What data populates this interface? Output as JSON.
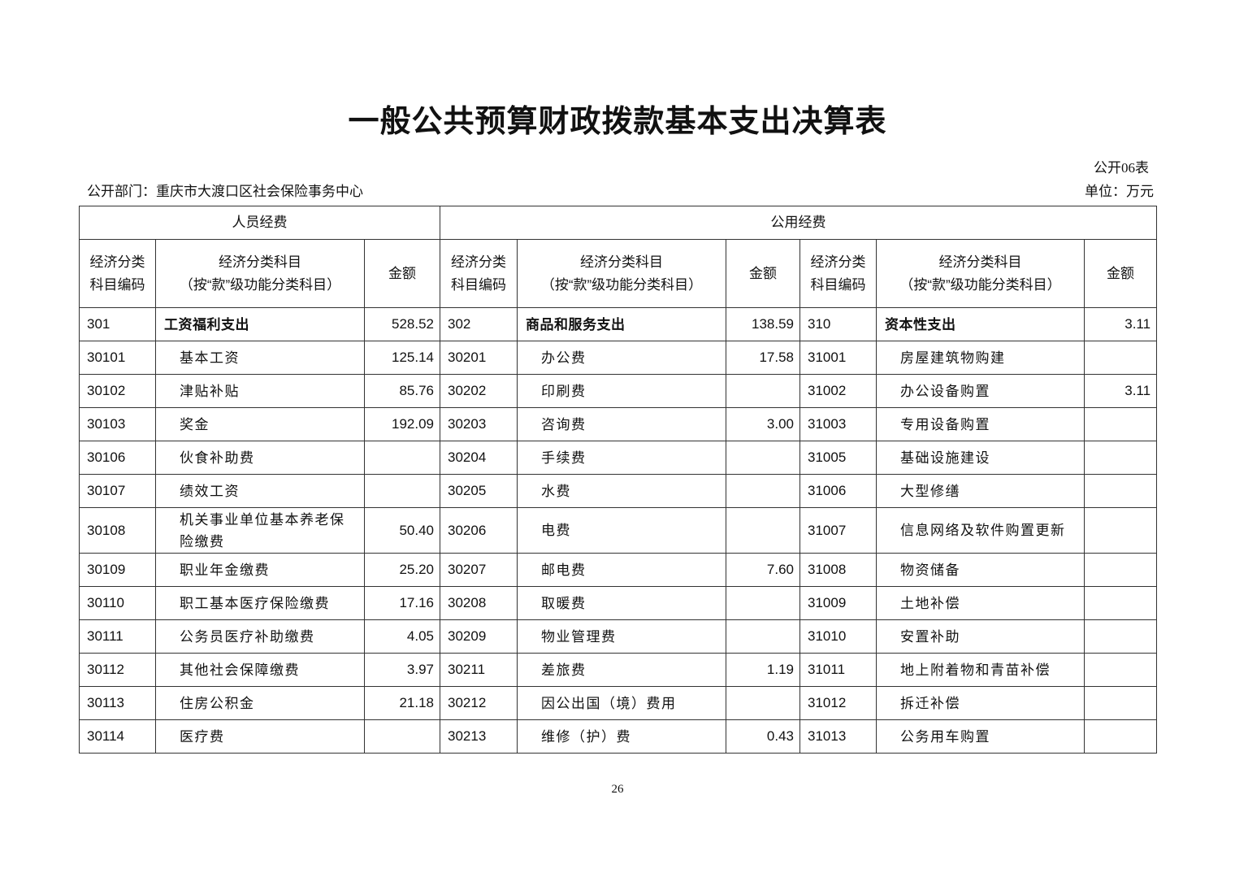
{
  "title": "一般公共预算财政拨款基本支出决算表",
  "table_no": "公开06表",
  "department": "公开部门：重庆市大渡口区社会保险事务中心",
  "unit": "单位：万元",
  "groups": [
    "人员经费",
    "公用经费"
  ],
  "headers": [
    "经济分类科目编码",
    "经济分类科目（按“款”级功能分类科目）",
    "金额",
    "经济分类科目编码",
    "经济分类科目（按“款”级功能分类科目）",
    "金额",
    "经济分类科目编码",
    "经济分类科目（按“款”级功能分类科目）",
    "金额"
  ],
  "rows": [
    [
      "301",
      "工资福利支出",
      "528.52",
      "302",
      "商品和服务支出",
      "138.59",
      "310",
      "资本性支出",
      "3.11"
    ],
    [
      "30101",
      "基本工资",
      "125.14",
      "30201",
      "办公费",
      "17.58",
      "31001",
      "房屋建筑物购建",
      ""
    ],
    [
      "30102",
      "津贴补贴",
      "85.76",
      "30202",
      "印刷费",
      "",
      "31002",
      "办公设备购置",
      "3.11"
    ],
    [
      "30103",
      "奖金",
      "192.09",
      "30203",
      "咨询费",
      "3.00",
      "31003",
      "专用设备购置",
      ""
    ],
    [
      "30106",
      "伙食补助费",
      "",
      "30204",
      "手续费",
      "",
      "31005",
      "基础设施建设",
      ""
    ],
    [
      "30107",
      "绩效工资",
      "",
      "30205",
      "水费",
      "",
      "31006",
      "大型修缮",
      ""
    ],
    [
      "30108",
      "机关事业单位基本养老保险缴费",
      "50.40",
      "30206",
      "电费",
      "",
      "31007",
      "信息网络及软件购置更新",
      ""
    ],
    [
      "30109",
      "职业年金缴费",
      "25.20",
      "30207",
      "邮电费",
      "7.60",
      "31008",
      "物资储备",
      ""
    ],
    [
      "30110",
      "职工基本医疗保险缴费",
      "17.16",
      "30208",
      "取暖费",
      "",
      "31009",
      "土地补偿",
      ""
    ],
    [
      "30111",
      "公务员医疗补助缴费",
      "4.05",
      "30209",
      "物业管理费",
      "",
      "31010",
      "安置补助",
      ""
    ],
    [
      "30112",
      "其他社会保障缴费",
      "3.97",
      "30211",
      "差旅费",
      "1.19",
      "31011",
      "地上附着物和青苗补偿",
      ""
    ],
    [
      "30113",
      "住房公积金",
      "21.18",
      "30212",
      "因公出国（境）费用",
      "",
      "31012",
      "拆迁补偿",
      ""
    ],
    [
      "30114",
      "医疗费",
      "",
      "30213",
      "维修（护）费",
      "0.43",
      "31013",
      "公务用车购置",
      ""
    ]
  ],
  "page_number": "26"
}
